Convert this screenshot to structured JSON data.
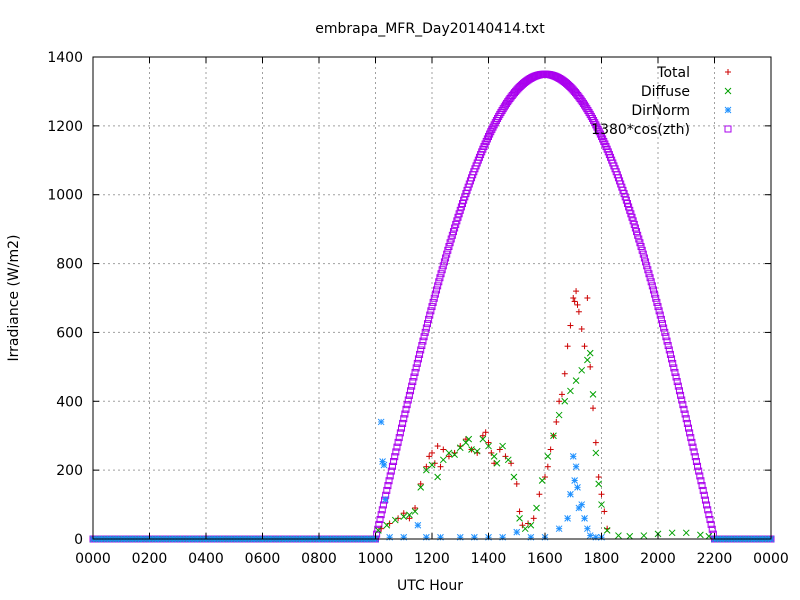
{
  "chart_data": {
    "type": "scatter",
    "title": "embrapa_MFR_Day20140414.txt",
    "xlabel": "UTC Hour",
    "ylabel": "Irradiance (W/m2)",
    "xlim": [
      0,
      24
    ],
    "ylim": [
      0,
      1400
    ],
    "grid": true,
    "legend_position": "top-right",
    "x_ticks": [
      {
        "value": 0,
        "label": "0000"
      },
      {
        "value": 2,
        "label": "0200"
      },
      {
        "value": 4,
        "label": "0400"
      },
      {
        "value": 6,
        "label": "0600"
      },
      {
        "value": 8,
        "label": "0800"
      },
      {
        "value": 10,
        "label": "1000"
      },
      {
        "value": 12,
        "label": "1200"
      },
      {
        "value": 14,
        "label": "1400"
      },
      {
        "value": 16,
        "label": "1600"
      },
      {
        "value": 18,
        "label": "1800"
      },
      {
        "value": 20,
        "label": "2000"
      },
      {
        "value": 22,
        "label": "2200"
      },
      {
        "value": 24,
        "label": "0000"
      }
    ],
    "y_ticks": [
      0,
      200,
      400,
      600,
      800,
      1000,
      1200,
      1400
    ],
    "series": [
      {
        "name": "Total",
        "color": "#cc0000",
        "marker": "plus",
        "points": [
          [
            10.2,
            30
          ],
          [
            10.5,
            45
          ],
          [
            10.8,
            60
          ],
          [
            11.0,
            75
          ],
          [
            11.2,
            60
          ],
          [
            11.4,
            90
          ],
          [
            11.6,
            160
          ],
          [
            11.8,
            210
          ],
          [
            11.9,
            240
          ],
          [
            12.0,
            250
          ],
          [
            12.1,
            220
          ],
          [
            12.2,
            270
          ],
          [
            12.3,
            210
          ],
          [
            12.4,
            260
          ],
          [
            12.6,
            240
          ],
          [
            12.8,
            250
          ],
          [
            13.0,
            270
          ],
          [
            13.2,
            290
          ],
          [
            13.4,
            260
          ],
          [
            13.6,
            250
          ],
          [
            13.8,
            300
          ],
          [
            13.9,
            310
          ],
          [
            14.0,
            280
          ],
          [
            14.1,
            250
          ],
          [
            14.2,
            220
          ],
          [
            14.4,
            260
          ],
          [
            14.6,
            240
          ],
          [
            14.8,
            220
          ],
          [
            15.0,
            160
          ],
          [
            15.1,
            80
          ],
          [
            15.2,
            40
          ],
          [
            15.4,
            45
          ],
          [
            15.6,
            60
          ],
          [
            15.8,
            130
          ],
          [
            16.0,
            180
          ],
          [
            16.1,
            210
          ],
          [
            16.2,
            260
          ],
          [
            16.3,
            300
          ],
          [
            16.4,
            340
          ],
          [
            16.5,
            400
          ],
          [
            16.6,
            420
          ],
          [
            16.7,
            480
          ],
          [
            16.8,
            560
          ],
          [
            16.9,
            620
          ],
          [
            17.0,
            700
          ],
          [
            17.05,
            690
          ],
          [
            17.1,
            720
          ],
          [
            17.15,
            680
          ],
          [
            17.2,
            660
          ],
          [
            17.3,
            610
          ],
          [
            17.4,
            560
          ],
          [
            17.5,
            700
          ],
          [
            17.6,
            500
          ],
          [
            17.7,
            380
          ],
          [
            17.8,
            280
          ],
          [
            17.9,
            180
          ],
          [
            18.0,
            130
          ],
          [
            18.1,
            80
          ],
          [
            18.2,
            30
          ]
        ]
      },
      {
        "name": "Diffuse",
        "color": "#00a000",
        "marker": "cross",
        "points": [
          [
            10.1,
            25
          ],
          [
            10.4,
            40
          ],
          [
            10.7,
            55
          ],
          [
            11.0,
            65
          ],
          [
            11.2,
            70
          ],
          [
            11.4,
            80
          ],
          [
            11.6,
            150
          ],
          [
            11.8,
            200
          ],
          [
            12.0,
            215
          ],
          [
            12.2,
            180
          ],
          [
            12.4,
            230
          ],
          [
            12.6,
            250
          ],
          [
            12.8,
            245
          ],
          [
            13.0,
            265
          ],
          [
            13.2,
            280
          ],
          [
            13.3,
            290
          ],
          [
            13.4,
            260
          ],
          [
            13.6,
            255
          ],
          [
            13.8,
            290
          ],
          [
            14.0,
            270
          ],
          [
            14.2,
            240
          ],
          [
            14.3,
            220
          ],
          [
            14.5,
            270
          ],
          [
            14.7,
            230
          ],
          [
            14.9,
            180
          ],
          [
            15.1,
            60
          ],
          [
            15.3,
            30
          ],
          [
            15.5,
            40
          ],
          [
            15.7,
            90
          ],
          [
            15.9,
            170
          ],
          [
            16.1,
            240
          ],
          [
            16.3,
            300
          ],
          [
            16.5,
            360
          ],
          [
            16.7,
            400
          ],
          [
            16.9,
            430
          ],
          [
            17.1,
            460
          ],
          [
            17.3,
            490
          ],
          [
            17.5,
            520
          ],
          [
            17.6,
            540
          ],
          [
            17.7,
            420
          ],
          [
            17.8,
            250
          ],
          [
            17.9,
            160
          ],
          [
            18.0,
            100
          ],
          [
            18.2,
            25
          ],
          [
            18.6,
            10
          ],
          [
            19.0,
            8
          ],
          [
            19.5,
            10
          ],
          [
            20.0,
            15
          ],
          [
            20.5,
            18
          ],
          [
            21.0,
            18
          ],
          [
            21.5,
            12
          ],
          [
            21.8,
            8
          ]
        ]
      },
      {
        "name": "DirNorm",
        "color": "#1e90ff",
        "marker": "star",
        "points": [
          [
            10.2,
            340
          ],
          [
            10.25,
            225
          ],
          [
            10.3,
            215
          ],
          [
            10.35,
            115
          ],
          [
            10.5,
            5
          ],
          [
            11.0,
            5
          ],
          [
            11.5,
            40
          ],
          [
            11.8,
            5
          ],
          [
            12.3,
            5
          ],
          [
            13.0,
            5
          ],
          [
            13.5,
            5
          ],
          [
            14.0,
            5
          ],
          [
            14.5,
            5
          ],
          [
            15.0,
            20
          ],
          [
            15.5,
            5
          ],
          [
            16.0,
            5
          ],
          [
            16.5,
            30
          ],
          [
            16.8,
            60
          ],
          [
            16.9,
            130
          ],
          [
            17.0,
            240
          ],
          [
            17.05,
            170
          ],
          [
            17.1,
            210
          ],
          [
            17.15,
            150
          ],
          [
            17.2,
            90
          ],
          [
            17.3,
            100
          ],
          [
            17.4,
            60
          ],
          [
            17.5,
            30
          ],
          [
            17.6,
            10
          ],
          [
            17.8,
            5
          ],
          [
            18.0,
            5
          ]
        ]
      },
      {
        "name": "1380*cos(zth)",
        "color": "#aa00ee",
        "marker": "square",
        "model": "1350*cos(pi*(h-16)/12) for 10<=h<=22, else 0"
      }
    ]
  }
}
